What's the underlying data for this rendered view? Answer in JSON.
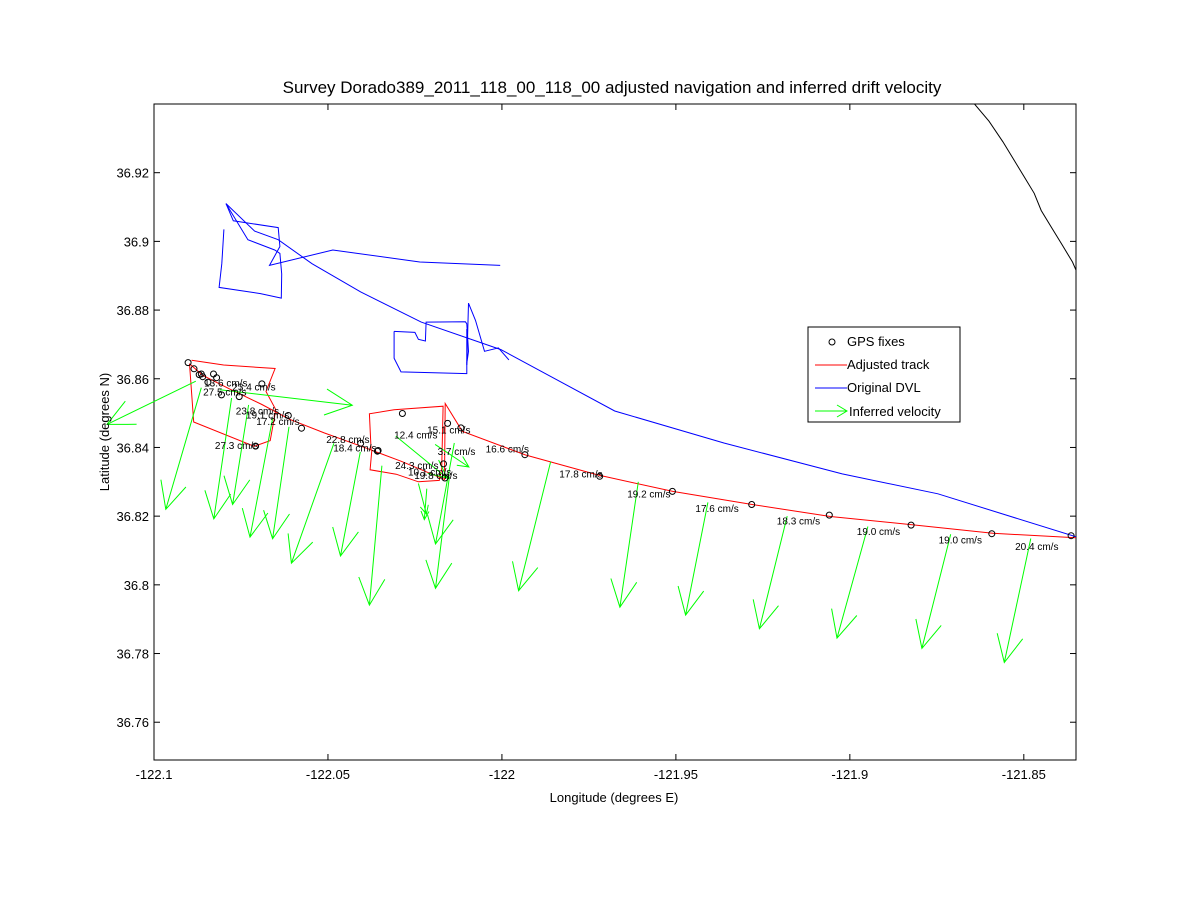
{
  "chart_data": {
    "type": "line",
    "title": "Survey Dorado389_2011_118_00_118_00 adjusted navigation and inferred drift velocity",
    "xlabel": "Longitude (degrees E)",
    "ylabel": "Latitude (degrees N)",
    "xlim": [
      -122.1,
      -121.835
    ],
    "ylim": [
      36.749,
      36.94
    ],
    "xticks": [
      -122.1,
      -122.05,
      -122.0,
      -121.95,
      -121.9,
      -121.85
    ],
    "xtick_labels": [
      "-122.1",
      "-122.05",
      "-122",
      "-121.95",
      "-121.9",
      "-121.85"
    ],
    "yticks": [
      36.76,
      36.78,
      36.8,
      36.82,
      36.84,
      36.86,
      36.88,
      36.9,
      36.92
    ],
    "ytick_labels": [
      "36.76",
      "36.78",
      "36.8",
      "36.82",
      "36.84",
      "36.86",
      "36.88",
      "36.9",
      "36.92"
    ],
    "grid": false,
    "legend_position": "right",
    "legend": [
      {
        "label": "GPS fixes",
        "style": "circle",
        "color": "#000000"
      },
      {
        "label": "Adjusted track",
        "style": "line",
        "color": "#ff0000"
      },
      {
        "label": "Original DVL",
        "style": "line",
        "color": "#0000ff"
      },
      {
        "label": "Inferred velocity",
        "style": "arrow",
        "color": "#00ff00"
      }
    ],
    "colors": {
      "gps": "#000000",
      "adjusted": "#ff0000",
      "dvl": "#0000ff",
      "velocity": "#00ff00",
      "coast": "#000000"
    },
    "series": [
      {
        "name": "Original DVL",
        "paths": [
          [
            [
              -122.0793,
              36.911
            ],
            [
              -122.0772,
              36.906
            ],
            [
              -122.0643,
              36.904
            ],
            [
              -122.0638,
              36.8985
            ],
            [
              -122.0668,
              36.893
            ],
            [
              -122.0486,
              36.8975
            ],
            [
              -122.0236,
              36.894
            ],
            [
              -122.0005,
              36.893
            ]
          ],
          [
            [
              -122.0793,
              36.911
            ],
            [
              -122.0711,
              36.903
            ],
            [
              -122.0643,
              36.9005
            ],
            [
              -122.0546,
              36.8935
            ],
            [
              -122.0406,
              36.8853
            ],
            [
              -122.0232,
              36.8765
            ],
            [
              -122.0003,
              36.8685
            ],
            [
              -121.9676,
              36.8506
            ],
            [
              -121.9362,
              36.8413
            ],
            [
              -121.9022,
              36.8323
            ],
            [
              -121.8747,
              36.8265
            ],
            [
              -121.835,
              36.814
            ]
          ],
          [
            [
              -122.0793,
              36.911
            ],
            [
              -122.073,
              36.9005
            ],
            [
              -122.0653,
              36.8975
            ],
            [
              -122.0638,
              36.8965
            ],
            [
              -122.0633,
              36.8905
            ],
            [
              -122.0634,
              36.8835
            ],
            [
              -122.0694,
              36.8848
            ],
            [
              -122.0813,
              36.8866
            ],
            [
              -122.0805,
              36.8935
            ],
            [
              -122.0799,
              36.9035
            ]
          ],
          [
            [
              -122.031,
              36.8738
            ],
            [
              -122.031,
              36.866
            ],
            [
              -122.029,
              36.862
            ],
            [
              -122.0101,
              36.8615
            ],
            [
              -122.0101,
              36.8745
            ]
          ],
          [
            [
              -122.031,
              36.8738
            ],
            [
              -122.025,
              36.8735
            ],
            [
              -122.024,
              36.8715
            ],
            [
              -122.022,
              36.871
            ],
            [
              -122.0218,
              36.8765
            ],
            [
              -122.0105,
              36.8766
            ],
            [
              -122.0101,
              36.876
            ],
            [
              -122.0096,
              36.868
            ],
            [
              -122.0101,
              36.8645
            ]
          ],
          [
            [
              -122.0101,
              36.864
            ],
            [
              -122.0096,
              36.882
            ],
            [
              -122.0076,
              36.877
            ],
            [
              -122.005,
              36.868
            ],
            [
              -122.001,
              36.869
            ],
            [
              -121.998,
              36.8655
            ]
          ]
        ]
      },
      {
        "name": "Adjusted track",
        "paths": [
          [
            [
              -122.0898,
              36.8644
            ],
            [
              -122.086,
              36.861
            ],
            [
              -122.0782,
              36.857
            ],
            [
              -122.069,
              36.8525
            ],
            [
              -122.061,
              36.8482
            ],
            [
              -122.051,
              36.8442
            ],
            [
              -122.04,
              36.8402
            ],
            [
              -122.029,
              36.836
            ],
            [
              -122.0165,
              36.8307
            ],
            [
              -122.0163,
              36.8528
            ],
            [
              -122.0114,
              36.8447
            ],
            [
              -121.9932,
              36.8378
            ],
            [
              -121.9725,
              36.832
            ],
            [
              -121.9509,
              36.8272
            ],
            [
              -121.9281,
              36.8234
            ],
            [
              -121.9056,
              36.8199
            ],
            [
              -121.8821,
              36.8175
            ],
            [
              -121.8589,
              36.815
            ],
            [
              -121.835,
              36.8137
            ]
          ],
          [
            [
              -122.0898,
              36.8644
            ],
            [
              -122.0886,
              36.8474
            ],
            [
              -122.0712,
              36.8403
            ],
            [
              -122.0666,
              36.842
            ],
            [
              -122.065,
              36.851
            ],
            [
              -122.0678,
              36.8563
            ],
            [
              -122.0652,
              36.863
            ],
            [
              -122.08,
              36.864
            ],
            [
              -122.0892,
              36.8654
            ]
          ],
          [
            [
              -122.0374,
              36.8391
            ],
            [
              -122.0379,
              36.8335
            ],
            [
              -122.0304,
              36.8322
            ],
            [
              -122.024,
              36.83
            ],
            [
              -122.018,
              36.8304
            ],
            [
              -122.0173,
              36.8337
            ],
            [
              -122.0169,
              36.852
            ],
            [
              -122.031,
              36.851
            ],
            [
              -122.0381,
              36.8498
            ],
            [
              -122.0376,
              36.8393
            ]
          ]
        ]
      },
      {
        "name": "GPS fixes",
        "points": [
          [
            -122.0902,
            36.8647
          ],
          [
            -122.0885,
            36.8629
          ],
          [
            -122.087,
            36.8612
          ],
          [
            -122.0864,
            36.8614
          ],
          [
            -122.0829,
            36.8614
          ],
          [
            -122.082,
            36.8603
          ],
          [
            -122.0755,
            36.8548
          ],
          [
            -122.069,
            36.8585
          ],
          [
            -122.0614,
            36.8493
          ],
          [
            -122.0576,
            36.8456
          ],
          [
            -122.0406,
            36.8412
          ],
          [
            -122.0356,
            36.8391
          ],
          [
            -122.0358,
            36.8389
          ],
          [
            -122.0286,
            36.8499
          ],
          [
            -122.0168,
            36.8352
          ],
          [
            -122.0156,
            36.847
          ],
          [
            -122.0118,
            36.8457
          ],
          [
            -121.9934,
            36.8379
          ],
          [
            -121.9719,
            36.8316
          ],
          [
            -121.951,
            36.8272
          ],
          [
            -121.9282,
            36.8234
          ],
          [
            -121.9059,
            36.8203
          ],
          [
            -121.8824,
            36.8174
          ],
          [
            -121.8592,
            36.8149
          ],
          [
            -121.8364,
            36.8143
          ],
          [
            -122.086,
            36.8606
          ],
          [
            -122.0806,
            36.8553
          ],
          [
            -122.0708,
            36.8404
          ],
          [
            -122.0164,
            36.8311
          ],
          [
            -122.0845,
            36.859
          ]
        ]
      },
      {
        "name": "Inferred velocity",
        "vectors": [
          {
            "x": -122.088,
            "y": 36.8593,
            "u": -0.0255,
            "v": -0.0126
          },
          {
            "x": -122.0864,
            "y": 36.8574,
            "u": -0.0102,
            "v": -0.0354
          },
          {
            "x": -122.0811,
            "y": 36.8568,
            "u": 0.0381,
            "v": -0.0045
          },
          {
            "x": -122.0777,
            "y": 36.8544,
            "u": -0.0051,
            "v": -0.0352
          },
          {
            "x": -122.0728,
            "y": 36.8524,
            "u": -0.0046,
            "v": -0.029
          },
          {
            "x": -122.0659,
            "y": 36.8484,
            "u": -0.0065,
            "v": -0.0345
          },
          {
            "x": -122.0612,
            "y": 36.846,
            "u": -0.0047,
            "v": -0.0326
          },
          {
            "x": -122.0483,
            "y": 36.8412,
            "u": -0.0122,
            "v": -0.0349
          },
          {
            "x": -122.0407,
            "y": 36.8387,
            "u": -0.0057,
            "v": -0.0303
          },
          {
            "x": -122.0345,
            "y": 36.8347,
            "u": -0.0036,
            "v": -0.0406
          },
          {
            "x": -122.0305,
            "y": 36.8433,
            "u": 0.0147,
            "v": -0.0122
          },
          {
            "x": -122.024,
            "y": 36.8295,
            "u": 0.0023,
            "v": -0.0089
          },
          {
            "x": -122.0216,
            "y": 36.828,
            "u": -0.0007,
            "v": -0.009
          },
          {
            "x": -122.0192,
            "y": 36.8409,
            "u": 0.0097,
            "v": -0.0066
          },
          {
            "x": -122.0151,
            "y": 36.8315,
            "u": -0.004,
            "v": -0.0325
          },
          {
            "x": -122.0137,
            "y": 36.8413,
            "u": -0.0054,
            "v": -0.0294
          },
          {
            "x": -121.986,
            "y": 36.8358,
            "u": -0.0092,
            "v": -0.0375
          },
          {
            "x": -121.9608,
            "y": 36.83,
            "u": -0.0053,
            "v": -0.0365
          },
          {
            "x": -121.9408,
            "y": 36.824,
            "u": -0.0064,
            "v": -0.0328
          },
          {
            "x": -121.918,
            "y": 36.82,
            "u": -0.008,
            "v": -0.0328
          },
          {
            "x": -121.8948,
            "y": 36.817,
            "u": -0.0089,
            "v": -0.0325
          },
          {
            "x": -121.871,
            "y": 36.8147,
            "u": -0.0083,
            "v": -0.0332
          },
          {
            "x": -121.848,
            "y": 36.8135,
            "u": -0.0076,
            "v": -0.0361
          }
        ]
      },
      {
        "name": "",
        "paths": [
          [
            [
              -121.865,
              36.941
            ],
            [
              -121.86,
              36.935
            ],
            [
              -121.856,
              36.929
            ],
            [
              -121.853,
              36.924
            ],
            [
              -121.85,
              36.919
            ],
            [
              -121.847,
              36.914
            ],
            [
              -121.845,
              36.909
            ],
            [
              -121.842,
              36.904
            ],
            [
              -121.839,
              36.899
            ],
            [
              -121.836,
              36.894
            ],
            [
              -121.8345,
              36.8905
            ]
          ]
        ]
      }
    ],
    "annotations": [
      {
        "text": "13.6 cm/s",
        "x": -122.0856,
        "y": 36.8578
      },
      {
        "text": "27.5 cm/s",
        "x": -122.0859,
        "y": 36.8551
      },
      {
        "text": "23.4 cm/s",
        "x": -122.0775,
        "y": 36.8566
      },
      {
        "text": "23.8 cm/s",
        "x": -122.0765,
        "y": 36.8496
      },
      {
        "text": "19.1 cm/s",
        "x": -122.0736,
        "y": 36.8485
      },
      {
        "text": "17.2 cm/s",
        "x": -122.0706,
        "y": 36.8466
      },
      {
        "text": "22.8 cm/s",
        "x": -122.0505,
        "y": 36.8413
      },
      {
        "text": "18.4 cm/s",
        "x": -122.0485,
        "y": 36.8388
      },
      {
        "text": "27.3 cm/s",
        "x": -122.0825,
        "y": 36.8396
      },
      {
        "text": "12.4 cm/s",
        "x": -122.031,
        "y": 36.8426
      },
      {
        "text": "15.1 cm/s",
        "x": -122.0215,
        "y": 36.844
      },
      {
        "text": "3.7 cm/s",
        "x": -122.0185,
        "y": 36.8378
      },
      {
        "text": "24.3 cm/s",
        "x": -122.0307,
        "y": 36.8337
      },
      {
        "text": "10.1 cm/s",
        "x": -122.027,
        "y": 36.8319
      },
      {
        "text": "19.8 cm/s",
        "x": -122.0252,
        "y": 36.8308
      },
      {
        "text": "16.6 cm/s",
        "x": -122.0047,
        "y": 36.8385
      },
      {
        "text": "17.8 cm/s",
        "x": -121.9835,
        "y": 36.8313
      },
      {
        "text": "19.2 cm/s",
        "x": -121.964,
        "y": 36.8254
      },
      {
        "text": "17.6 cm/s",
        "x": -121.9444,
        "y": 36.8212
      },
      {
        "text": "18.3 cm/s",
        "x": -121.921,
        "y": 36.8176
      },
      {
        "text": "19.0 cm/s",
        "x": -121.898,
        "y": 36.8145
      },
      {
        "text": "19.0 cm/s",
        "x": -121.8745,
        "y": 36.8121
      },
      {
        "text": "20.4 cm/s",
        "x": -121.8525,
        "y": 36.8102
      }
    ]
  }
}
